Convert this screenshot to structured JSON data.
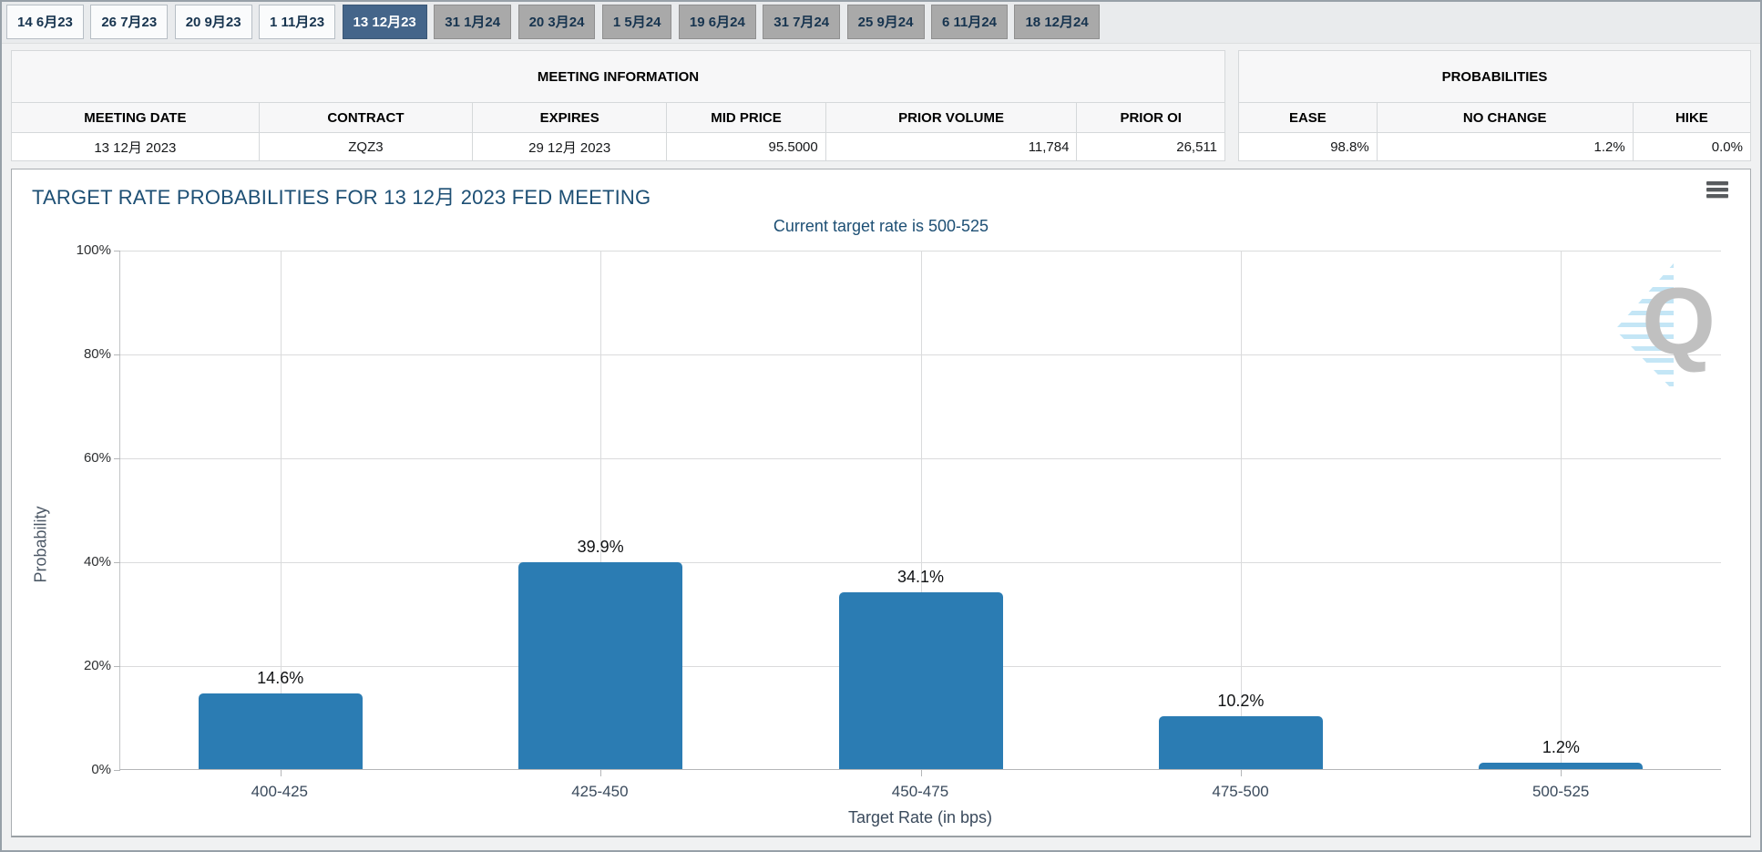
{
  "tabs": {
    "items": [
      {
        "label": "14 6月23",
        "state": "past"
      },
      {
        "label": "26 7月23",
        "state": "past"
      },
      {
        "label": "20 9月23",
        "state": "past"
      },
      {
        "label": "1 11月23",
        "state": "past"
      },
      {
        "label": "13 12月23",
        "state": "active"
      },
      {
        "label": "31 1月24",
        "state": "future"
      },
      {
        "label": "20 3月24",
        "state": "future"
      },
      {
        "label": "1 5月24",
        "state": "future"
      },
      {
        "label": "19 6月24",
        "state": "future"
      },
      {
        "label": "31 7月24",
        "state": "future"
      },
      {
        "label": "25 9月24",
        "state": "future"
      },
      {
        "label": "6 11月24",
        "state": "future"
      },
      {
        "label": "18 12月24",
        "state": "future"
      }
    ]
  },
  "meeting_info": {
    "title": "MEETING INFORMATION",
    "columns": [
      "MEETING DATE",
      "CONTRACT",
      "EXPIRES",
      "MID PRICE",
      "PRIOR VOLUME",
      "PRIOR OI"
    ],
    "row": {
      "meeting_date": "13 12月 2023",
      "contract": "ZQZ3",
      "expires": "29 12月 2023",
      "mid_price": "95.5000",
      "prior_volume": "11,784",
      "prior_oi": "26,511"
    }
  },
  "probabilities": {
    "title": "PROBABILITIES",
    "columns": [
      "EASE",
      "NO CHANGE",
      "HIKE"
    ],
    "row": {
      "ease": "98.8%",
      "no_change": "1.2%",
      "hike": "0.0%"
    }
  },
  "chart": {
    "title": "TARGET RATE PROBABILITIES FOR 13 12月 2023 FED MEETING",
    "subtitle": "Current target rate is 500-525",
    "watermark_letter": "Q",
    "menu_icon": "hamburger-icon"
  },
  "chart_data": {
    "type": "bar",
    "title": "TARGET RATE PROBABILITIES FOR 13 12月 2023 FED MEETING",
    "subtitle": "Current target rate is 500-525",
    "categories": [
      "400-425",
      "425-450",
      "450-475",
      "475-500",
      "500-525"
    ],
    "values": [
      14.6,
      39.9,
      34.1,
      10.2,
      1.2
    ],
    "value_labels": [
      "14.6%",
      "39.9%",
      "34.1%",
      "10.2%",
      "1.2%"
    ],
    "xlabel": "Target Rate (in bps)",
    "ylabel": "Probability",
    "ylim": [
      0,
      100
    ],
    "yticks": [
      "0%",
      "20%",
      "40%",
      "60%",
      "80%",
      "100%"
    ],
    "bar_color": "#2b7cb3",
    "grid": true,
    "legend": false
  },
  "colors": {
    "bar": "#2b7cb3",
    "active_tab": "#44658a",
    "inactive_tab": "#a9a9a9",
    "title_text": "#1d4f74",
    "gridline": "#dadbdc"
  }
}
